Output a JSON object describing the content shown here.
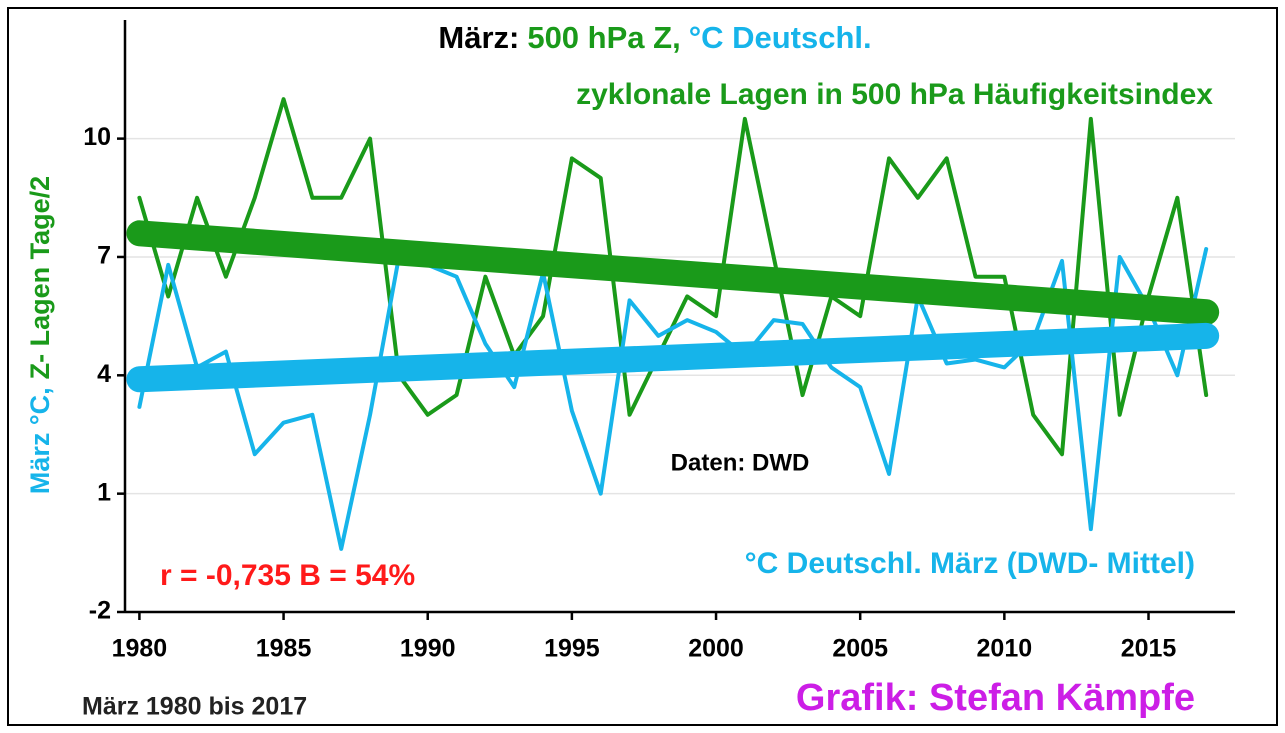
{
  "chart_data": {
    "type": "line",
    "title": [
      {
        "text": "März:",
        "color": "#000000"
      },
      {
        "text": "500 hPa Z,",
        "color": "#1a9a1a"
      },
      {
        "text": "°C Deutschl.",
        "color": "#16b4ea"
      }
    ],
    "y_label": [
      {
        "text": "März °C,",
        "color": "#16b4ea"
      },
      {
        "text": "Z- Lagen Tage/2",
        "color": "#1a9a1a"
      }
    ],
    "annotations": [
      {
        "text": "zyklonale Lagen in 500 hPa Häufigkeitsindex",
        "color": "#1a9a1a"
      },
      {
        "text": "Daten: DWD",
        "color": "#000000"
      },
      {
        "text": "°C Deutschl. März (DWD- Mittel)",
        "color": "#16b4ea"
      },
      {
        "text": "r = -0,735 B = 54%",
        "color": "#ff1a1a"
      },
      {
        "text": "März 1980 bis 2017",
        "color": "#222222"
      },
      {
        "text": "Grafik: Stefan Kämpfe",
        "color": "#cc1ee6"
      }
    ],
    "x": [
      1980,
      1981,
      1982,
      1983,
      1984,
      1985,
      1986,
      1987,
      1988,
      1989,
      1990,
      1991,
      1992,
      1993,
      1994,
      1995,
      1996,
      1997,
      1998,
      1999,
      2000,
      2001,
      2002,
      2003,
      2004,
      2005,
      2006,
      2007,
      2008,
      2009,
      2010,
      2011,
      2012,
      2013,
      2014,
      2015,
      2016,
      2017
    ],
    "series": [
      {
        "color": "#1a9a1a",
        "width": 4,
        "values": [
          8.5,
          6.0,
          8.5,
          6.5,
          8.5,
          11.0,
          8.5,
          8.5,
          10.0,
          4.0,
          3.0,
          3.5,
          6.5,
          4.5,
          5.5,
          9.5,
          9.0,
          3.0,
          4.5,
          6.0,
          5.5,
          10.5,
          7.0,
          3.5,
          6.0,
          5.5,
          9.5,
          8.5,
          9.5,
          6.5,
          6.5,
          3.0,
          2.0,
          10.5,
          3.0,
          6.0,
          8.5,
          3.5
        ]
      },
      {
        "color": "#16b4ea",
        "width": 4,
        "values": [
          3.2,
          6.8,
          4.2,
          4.6,
          2.0,
          2.8,
          3.0,
          -0.4,
          3.0,
          7.0,
          6.8,
          6.5,
          4.8,
          3.7,
          6.6,
          3.1,
          1.0,
          5.9,
          5.0,
          5.4,
          5.1,
          4.5,
          5.4,
          5.3,
          4.2,
          3.7,
          1.5,
          6.0,
          4.3,
          4.4,
          4.2,
          4.9,
          6.9,
          0.1,
          7.0,
          5.7,
          4.0,
          7.2
        ]
      }
    ],
    "trends": [
      {
        "color": "#1a9a1a",
        "x": [
          1980,
          2017
        ],
        "values": [
          7.6,
          5.6
        ]
      },
      {
        "color": "#16b4ea",
        "x": [
          1980,
          2017
        ],
        "values": [
          3.9,
          5.0
        ]
      }
    ],
    "xlim": [
      1979.5,
      2018
    ],
    "xticks": [
      1980,
      1985,
      1990,
      1995,
      2000,
      2005,
      2010,
      2015
    ],
    "ylim": [
      -2,
      12.5
    ],
    "yticks": [
      -2,
      1,
      4,
      7,
      10
    ],
    "grid": true
  }
}
